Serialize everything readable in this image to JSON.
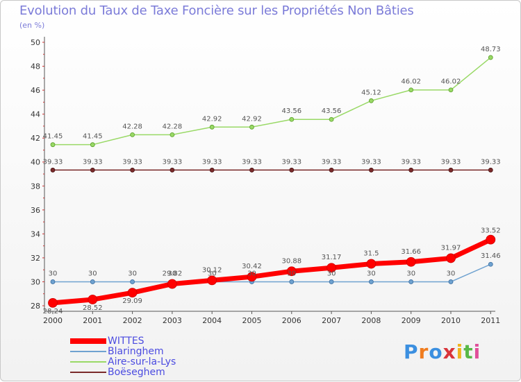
{
  "chart_data": {
    "type": "line",
    "title": "Evolution du Taux de Taxe Foncière sur les Propriétés Non Bâties",
    "subtitle": "(en %)",
    "xlabel": "",
    "ylabel": "(en %)",
    "ylim": [
      28,
      50
    ],
    "yticks": [
      "28",
      "30",
      "32",
      "34",
      "36",
      "38",
      "40",
      "42",
      "44",
      "46",
      "48",
      "50"
    ],
    "grid": false,
    "legend_position": "bottom-left",
    "categories": [
      "2000",
      "2001",
      "2002",
      "2003",
      "2004",
      "2005",
      "2006",
      "2007",
      "2008",
      "2009",
      "2010",
      "2011"
    ],
    "series": [
      {
        "name": "WITTES",
        "color": "#ff0000",
        "values": [
          28.24,
          28.52,
          29.09,
          29.82,
          30.12,
          30.42,
          30.88,
          31.17,
          31.5,
          31.66,
          31.97,
          33.52
        ],
        "labels": [
          "28.24",
          "28.52",
          "29.09",
          "29.82",
          "30.12",
          "30.42",
          "30.88",
          "31.17",
          "31.5",
          "31.66",
          "31.97",
          "33.52"
        ]
      },
      {
        "name": "Blaringhem",
        "color": "#6fa2d0",
        "values": [
          30,
          30,
          30,
          30,
          30,
          30,
          30,
          30,
          30,
          30,
          30,
          31.46
        ],
        "labels": [
          "30",
          "30",
          "30",
          "30",
          "30",
          "30",
          "30",
          "30",
          "30",
          "30",
          "30",
          "31.46"
        ]
      },
      {
        "name": "Aire-sur-la-Lys",
        "color": "#99d966",
        "values": [
          41.45,
          41.45,
          42.28,
          42.28,
          42.92,
          42.92,
          43.56,
          43.56,
          45.12,
          46.02,
          46.02,
          48.73
        ],
        "labels": [
          "41.45",
          "41.45",
          "42.28",
          "42.28",
          "42.92",
          "42.92",
          "43.56",
          "43.56",
          "45.12",
          "46.02",
          "46.02",
          "48.73"
        ]
      },
      {
        "name": "Boëseghem",
        "color": "#7a2a2a",
        "values": [
          39.33,
          39.33,
          39.33,
          39.33,
          39.33,
          39.33,
          39.33,
          39.33,
          39.33,
          39.33,
          39.33,
          39.33
        ],
        "labels": [
          "39.33",
          "39.33",
          "39.33",
          "39.33",
          "39.33",
          "39.33",
          "39.33",
          "39.33",
          "39.33",
          "39.33",
          "39.33",
          "39.33"
        ]
      }
    ]
  },
  "logo": {
    "text": "Proxiti",
    "letter_colors": [
      "#3b8fe0",
      "#f07c1e",
      "#3b8fe0",
      "#d9343a",
      "#f0b41e",
      "#58b847",
      "#e04f9a"
    ]
  }
}
